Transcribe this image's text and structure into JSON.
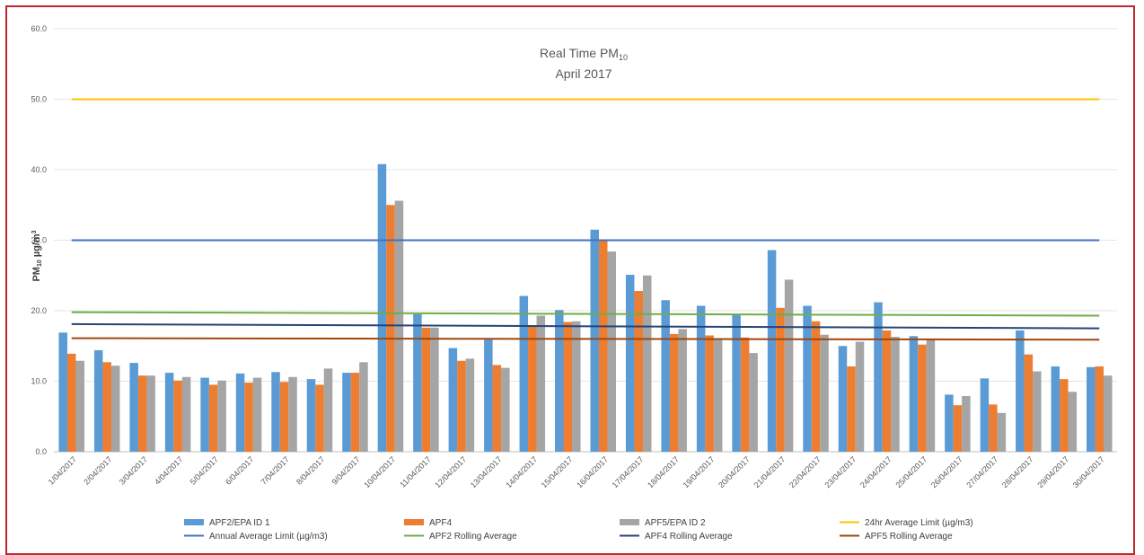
{
  "chart_data": {
    "type": "bar",
    "title_line1": "Real Time PM",
    "title_sub": "10",
    "title_line2": "April 2017",
    "ylabel_main": "PM",
    "ylabel_sub": "10",
    "ylabel_unit": "µg/m",
    "ylabel_sup": "3",
    "ylim": [
      0,
      60
    ],
    "yticks": [
      "0.0",
      "10.0",
      "20.0",
      "30.0",
      "40.0",
      "50.0",
      "60.0"
    ],
    "ytick_values": [
      0,
      10,
      20,
      30,
      40,
      50,
      60
    ],
    "grid": true,
    "legend_position": "bottom",
    "categories": [
      "1/04/2017",
      "2/04/2017",
      "3/04/2017",
      "4/04/2017",
      "5/04/2017",
      "6/04/2017",
      "7/04/2017",
      "8/04/2017",
      "9/04/2017",
      "10/04/2017",
      "11/04/2017",
      "12/04/2017",
      "13/04/2017",
      "14/04/2017",
      "15/04/2017",
      "16/04/2017",
      "17/04/2017",
      "18/04/2017",
      "19/04/2017",
      "20/04/2017",
      "21/04/2017",
      "22/04/2017",
      "23/04/2017",
      "24/04/2017",
      "25/04/2017",
      "26/04/2017",
      "27/04/2017",
      "28/04/2017",
      "29/04/2017",
      "30/04/2017"
    ],
    "bar_series": [
      {
        "name": "APF2/EPA ID 1",
        "color": "#5b9bd5",
        "values": [
          16.9,
          14.4,
          12.6,
          11.2,
          10.5,
          11.1,
          11.3,
          10.3,
          11.2,
          40.8,
          19.5,
          14.7,
          15.9,
          22.1,
          20.1,
          31.5,
          25.1,
          21.5,
          20.7,
          19.5,
          28.6,
          20.7,
          15.0,
          21.2,
          16.4,
          8.1,
          10.4,
          17.2,
          12.1,
          12.0
        ]
      },
      {
        "name": "APF4",
        "color": "#ed7d31",
        "values": [
          13.9,
          12.7,
          10.8,
          10.1,
          9.5,
          9.8,
          9.9,
          9.5,
          11.2,
          35.0,
          17.6,
          12.9,
          12.3,
          17.8,
          18.4,
          30.0,
          22.8,
          16.7,
          16.5,
          16.2,
          20.4,
          18.5,
          12.1,
          17.2,
          15.2,
          6.6,
          6.7,
          13.8,
          10.3,
          12.1
        ]
      },
      {
        "name": "APF5/EPA ID 2",
        "color": "#a5a5a5",
        "values": [
          12.9,
          12.2,
          10.8,
          10.6,
          10.1,
          10.5,
          10.6,
          11.8,
          12.7,
          35.6,
          17.6,
          13.2,
          11.9,
          19.3,
          18.5,
          28.4,
          25.0,
          17.4,
          16.1,
          14.0,
          24.4,
          16.6,
          15.6,
          16.3,
          16.0,
          7.9,
          5.5,
          11.4,
          8.5,
          10.8
        ]
      }
    ],
    "line_series": [
      {
        "name": "24hr Average Limit (µg/m3)",
        "color": "#ffc000",
        "values_start": 50.0,
        "values_end": 50.0
      },
      {
        "name": "Annual Average Limit (µg/m3)",
        "color": "#4472c4",
        "values_start": 30.0,
        "values_end": 30.0
      },
      {
        "name": "APF2 Rolling Average",
        "color": "#70ad47",
        "values_start": 19.8,
        "values_end": 19.3
      },
      {
        "name": "APF4 Rolling Average",
        "color": "#264478",
        "values_start": 18.1,
        "values_end": 17.5
      },
      {
        "name": "APF5 Rolling Average",
        "color": "#9e480e",
        "values_start": 16.1,
        "values_end": 15.9
      }
    ]
  },
  "legend": {
    "items": [
      {
        "label": "APF2/EPA ID 1",
        "color": "#5b9bd5",
        "kind": "bar"
      },
      {
        "label": "APF4",
        "color": "#ed7d31",
        "kind": "bar"
      },
      {
        "label": "APF5/EPA ID 2",
        "color": "#a5a5a5",
        "kind": "bar"
      },
      {
        "label": "24hr Average Limit (µg/m3)",
        "color": "#ffc000",
        "kind": "line"
      },
      {
        "label": "Annual Average Limit (µg/m3)",
        "color": "#4472c4",
        "kind": "line"
      },
      {
        "label": "APF2 Rolling Average",
        "color": "#70ad47",
        "kind": "line"
      },
      {
        "label": "APF4 Rolling Average",
        "color": "#264478",
        "kind": "line"
      },
      {
        "label": "APF5 Rolling Average",
        "color": "#9e480e",
        "kind": "line"
      }
    ]
  }
}
